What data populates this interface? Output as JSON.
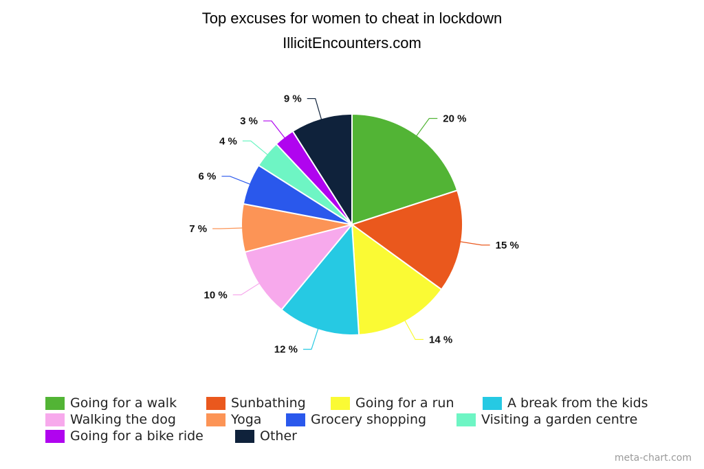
{
  "chart_data": {
    "type": "pie",
    "title": "Top excuses for women to cheat in lockdown",
    "subtitle": "IllicitEncounters.com",
    "slices": [
      {
        "name": "Going for a walk",
        "value": 20,
        "label": "20 %",
        "color": "#52b435"
      },
      {
        "name": "Sunbathing",
        "value": 15,
        "label": "15 %",
        "color": "#ea581d"
      },
      {
        "name": "Going for a run",
        "value": 14,
        "label": "14 %",
        "color": "#fafa34"
      },
      {
        "name": "A break from the kids",
        "value": 12,
        "label": "12 %",
        "color": "#26c9e3"
      },
      {
        "name": "Walking the dog",
        "value": 10,
        "label": "10 %",
        "color": "#f7a9ec"
      },
      {
        "name": "Yoga",
        "value": 7,
        "label": "7 %",
        "color": "#fc9456"
      },
      {
        "name": "Grocery shopping",
        "value": 6,
        "label": "6 %",
        "color": "#2a58ec"
      },
      {
        "name": "Visiting a garden centre",
        "value": 4,
        "label": "4 %",
        "color": "#6ef5c4"
      },
      {
        "name": "Going for a bike ride",
        "value": 3,
        "label": "3 %",
        "color": "#b004ef"
      },
      {
        "name": "Other",
        "value": 9,
        "label": "9 %",
        "color": "#0f223b"
      }
    ],
    "legend_position": "bottom"
  },
  "credit": "meta-chart.com"
}
